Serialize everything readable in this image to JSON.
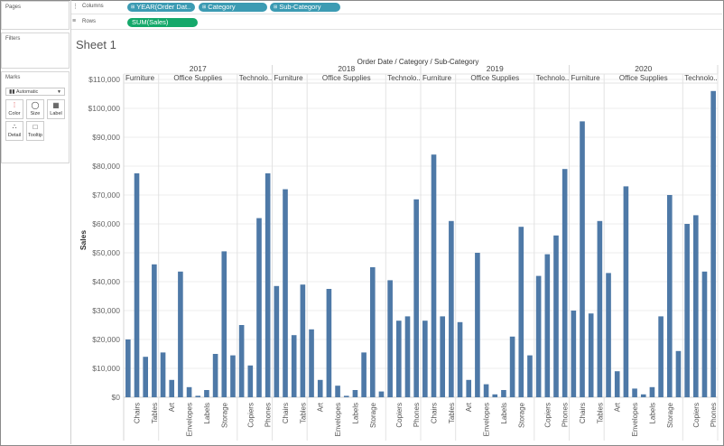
{
  "shelves": {
    "pages_label": "Pages",
    "columns_label": "Columns",
    "rows_label": "Rows",
    "columns_pills": [
      "YEAR(Order Dat..",
      "Category",
      "Sub-Category"
    ],
    "rows_pills": [
      "SUM(Sales)"
    ]
  },
  "panels": {
    "filters": "Filters",
    "marks": "Marks",
    "marks_type": "Automatic",
    "marks_buttons": [
      "Color",
      "Size",
      "Label",
      "Detail",
      "Tooltip"
    ]
  },
  "sheet": {
    "title": "Sheet 1"
  },
  "colors": {
    "bar": "#4e79a7",
    "dimension_pill": "#3c9bb3",
    "measure_pill": "#14a86a"
  },
  "chart_data": {
    "type": "bar",
    "title": "Order Date / Category / Sub-Category",
    "ylabel": "Sales",
    "ylim": [
      0,
      110000
    ],
    "y_ticks": [
      0,
      10000,
      20000,
      30000,
      40000,
      50000,
      60000,
      70000,
      80000,
      90000,
      100000,
      110000
    ],
    "y_tick_labels": [
      "$0",
      "$10,000",
      "$20,000",
      "$30,000",
      "$40,000",
      "$50,000",
      "$60,000",
      "$70,000",
      "$80,000",
      "$90,000",
      "$100,000",
      "$110,000"
    ],
    "years": [
      "2017",
      "2018",
      "2019",
      "2020"
    ],
    "category_headers": [
      [
        "Furniture",
        "Office Supplies",
        "Technolo.."
      ],
      [
        "Furniture",
        "Office Supplies",
        "Technolo.."
      ],
      [
        "Furniture",
        "Office Supplies",
        "Technolo.."
      ],
      [
        "Furniture",
        "Office Supplies",
        "Technolo.."
      ]
    ],
    "subcategory_labels": [
      "Chairs",
      "Tables",
      "Art",
      "Envelopes",
      "Labels",
      "Storage",
      "Copiers",
      "Phones"
    ],
    "groups": [
      {
        "year": "2017",
        "category": "Furniture",
        "values": [
          20000,
          77500,
          14000,
          46000
        ]
      },
      {
        "year": "2017",
        "category": "Office Supplies",
        "values": [
          15500,
          6000,
          43500,
          3500,
          500,
          2500,
          15000,
          50500,
          14500
        ]
      },
      {
        "year": "2017",
        "category": "Technology",
        "values": [
          25000,
          11000,
          62000,
          77500
        ]
      },
      {
        "year": "2018",
        "category": "Furniture",
        "values": [
          38500,
          72000,
          21500,
          39000
        ]
      },
      {
        "year": "2018",
        "category": "Office Supplies",
        "values": [
          23500,
          6000,
          37500,
          4000,
          500,
          2500,
          15500,
          45000,
          2000
        ]
      },
      {
        "year": "2018",
        "category": "Technology",
        "values": [
          40500,
          26500,
          28000,
          68500
        ]
      },
      {
        "year": "2019",
        "category": "Furniture",
        "values": [
          26500,
          84000,
          28000,
          61000
        ]
      },
      {
        "year": "2019",
        "category": "Office Supplies",
        "values": [
          26000,
          6000,
          50000,
          4500,
          1000,
          2500,
          21000,
          59000,
          14500
        ]
      },
      {
        "year": "2019",
        "category": "Technology",
        "values": [
          42000,
          49500,
          56000,
          79000
        ]
      },
      {
        "year": "2020",
        "category": "Furniture",
        "values": [
          30000,
          95500,
          29000,
          61000
        ]
      },
      {
        "year": "2020",
        "category": "Office Supplies",
        "values": [
          43000,
          9000,
          73000,
          3000,
          1000,
          3500,
          28000,
          70000,
          16000
        ]
      },
      {
        "year": "2020",
        "category": "Technology",
        "values": [
          60000,
          63000,
          43500,
          106000
        ]
      }
    ]
  }
}
